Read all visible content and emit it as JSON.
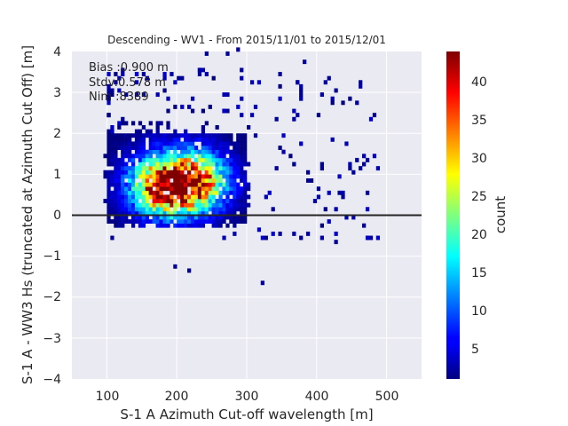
{
  "chart_data": {
    "type": "heatmap",
    "title": "Descending - WV1 - From 2015/11/01 to 2015/12/01",
    "xlabel": "S-1 A Azimuth Cut-off wavelength [m]",
    "ylabel": "S-1 A - WW3 Hs (truncated at Azimuth Cut Off) [m]",
    "xlim": [
      50,
      550
    ],
    "ylim": [
      -4,
      4
    ],
    "x_ticks": [
      "100",
      "200",
      "300",
      "400",
      "500"
    ],
    "y_ticks": [
      "4",
      "3",
      "2",
      "1",
      "0",
      "−1",
      "−2",
      "−3",
      "−4"
    ],
    "grid": true,
    "reference_line_y": 0,
    "colorbar": {
      "label": "count",
      "range": [
        1,
        44
      ],
      "ticks": [
        "40",
        "35",
        "30",
        "25",
        "20",
        "15",
        "10",
        "5"
      ],
      "colormap": "jet"
    },
    "stats": {
      "bias": "Bias :0.900 m",
      "stdv": "Stdv:0.578 m",
      "nim": "Nim :8389"
    },
    "density_clusters": [
      {
        "x": 180,
        "y": 0.7,
        "peak_count": 42,
        "sx": 30,
        "sy": 0.45
      },
      {
        "x": 225,
        "y": 0.8,
        "peak_count": 40,
        "sx": 30,
        "sy": 0.45
      }
    ],
    "hist_extent": {
      "x": [
        100,
        300
      ],
      "y": [
        -0.2,
        2.0
      ]
    }
  },
  "colors": {
    "background": "#eaeaf2",
    "grid": "#ffffff",
    "reference_line": "#262626"
  }
}
